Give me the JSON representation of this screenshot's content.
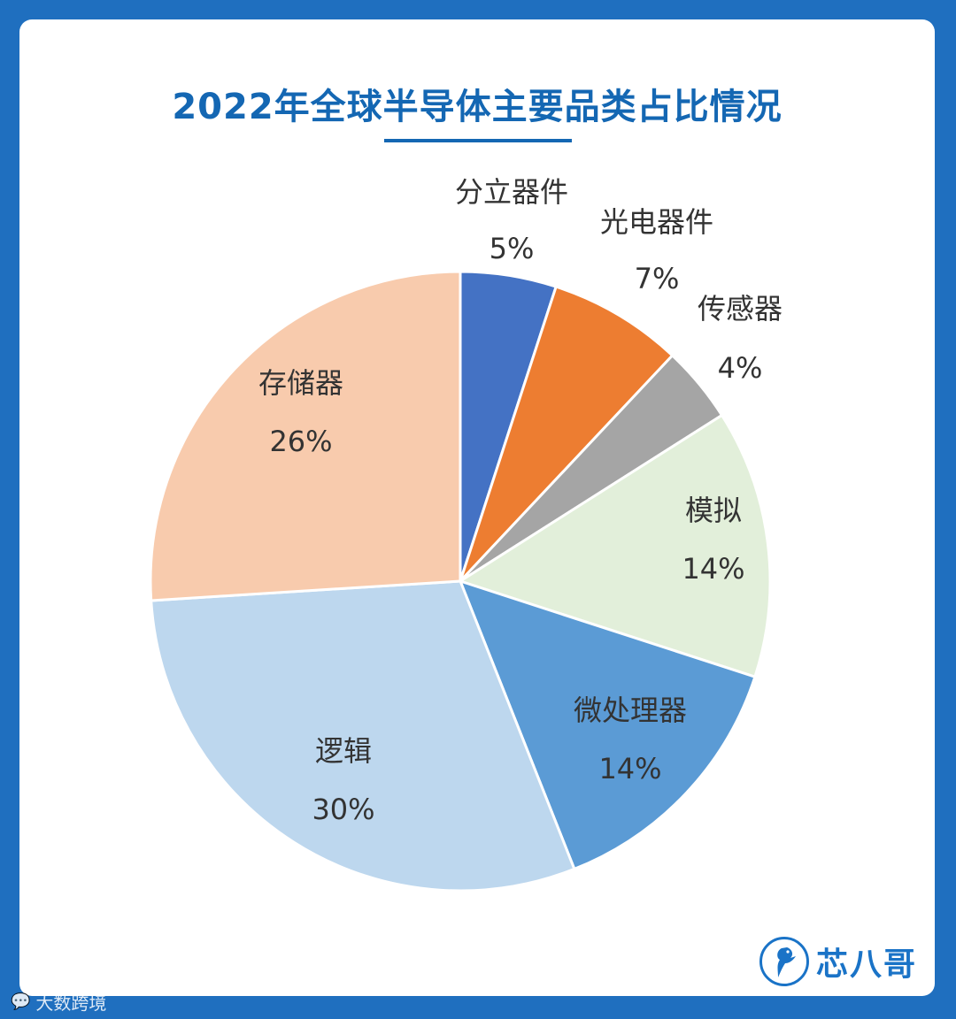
{
  "chart_data": {
    "type": "pie",
    "title": "2022年全球半导体主要品类占比情况",
    "start_angle_deg": 0,
    "direction": "clockwise",
    "slices": [
      {
        "label": "分立器件",
        "value": 5,
        "value_text": "5%",
        "color": "#4472c4"
      },
      {
        "label": "光电器件",
        "value": 7,
        "value_text": "7%",
        "color": "#ed7d31"
      },
      {
        "label": "传感器",
        "value": 4,
        "value_text": "4%",
        "color": "#a5a5a5"
      },
      {
        "label": "模拟",
        "value": 14,
        "value_text": "14%",
        "color": "#e2efda"
      },
      {
        "label": "微处理器",
        "value": 14,
        "value_text": "14%",
        "color": "#5b9bd5"
      },
      {
        "label": "逻辑",
        "value": 30,
        "value_text": "30%",
        "color": "#bdd7ee"
      },
      {
        "label": "存储器",
        "value": 26,
        "value_text": "26%",
        "color": "#f8cbad"
      }
    ]
  },
  "brand": {
    "name": "芯八哥"
  },
  "footer": {
    "source": "大数跨境"
  },
  "colors": {
    "background": "#1f6fbf",
    "title": "#1467b3",
    "brand": "#1a73c7"
  }
}
